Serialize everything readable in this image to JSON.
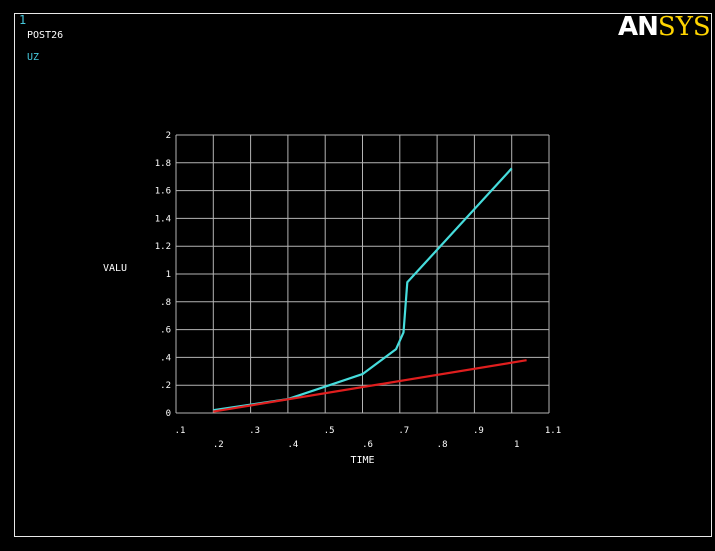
{
  "window_number": "1",
  "module": "POST26",
  "variable_label": "UZ",
  "logo": {
    "part1": "AN",
    "part2": "SYS"
  },
  "chart_data": {
    "type": "line",
    "xlabel": "TIME",
    "ylabel": "VALU",
    "xlim": [
      0.1,
      1.1
    ],
    "ylim": [
      0,
      2
    ],
    "x_ticks_upper": [
      ".1",
      ".3",
      ".5",
      ".7",
      ".9",
      "1.1"
    ],
    "x_ticks_lower": [
      ".2",
      ".4",
      ".6",
      ".8",
      "1"
    ],
    "y_ticks": [
      "0",
      ".2",
      ".4",
      ".6",
      ".8",
      "1",
      "1.2",
      "1.4",
      "1.6",
      "1.8",
      "2"
    ],
    "grid": true,
    "series": [
      {
        "color": "#46dcdc",
        "x": [
          0.2,
          0.4,
          0.6,
          0.69,
          0.71,
          0.72,
          1.0
        ],
        "y": [
          0.02,
          0.1,
          0.28,
          0.46,
          0.58,
          0.94,
          1.76
        ]
      },
      {
        "color": "#e01e1e",
        "x": [
          0.2,
          1.04
        ],
        "y": [
          0.01,
          0.38
        ]
      }
    ]
  }
}
